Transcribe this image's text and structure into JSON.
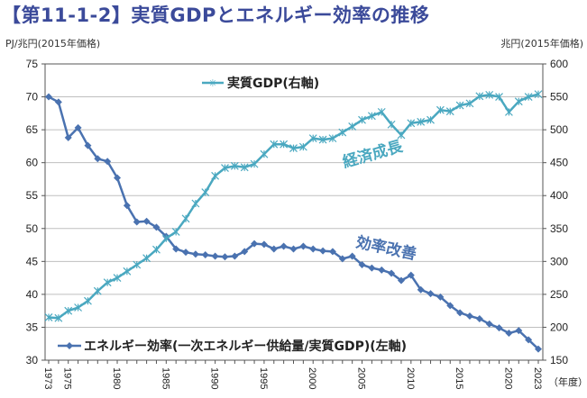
{
  "title": "【第11-1-2】実質GDPとエネルギー効率の推移",
  "chart_data": {
    "type": "line",
    "title": "【第11-1-2】実質GDPとエネルギー効率の推移",
    "xlabel": "（年度）",
    "ylabel_left": "PJ/兆円(2015年価格)",
    "ylabel_right": "兆円(2015年価格)",
    "ylim_left": [
      30,
      75
    ],
    "ylim_right": [
      150,
      600
    ],
    "yticks_left": [
      "30",
      "35",
      "40",
      "45",
      "50",
      "55",
      "60",
      "65",
      "70",
      "75"
    ],
    "yticks_right": [
      "150",
      "200",
      "250",
      "300",
      "350",
      "400",
      "450",
      "500",
      "550",
      "600"
    ],
    "xticks": [
      "1973",
      "1975",
      "1980",
      "1985",
      "1990",
      "1995",
      "2000",
      "2005",
      "2010",
      "2015",
      "2020",
      "2023"
    ],
    "grid": true,
    "x": [
      1973,
      1974,
      1975,
      1976,
      1977,
      1978,
      1979,
      1980,
      1981,
      1982,
      1983,
      1984,
      1985,
      1986,
      1987,
      1988,
      1989,
      1990,
      1991,
      1992,
      1993,
      1994,
      1995,
      1996,
      1997,
      1998,
      1999,
      2000,
      2001,
      2002,
      2003,
      2004,
      2005,
      2006,
      2007,
      2008,
      2009,
      2010,
      2011,
      2012,
      2013,
      2014,
      2015,
      2016,
      2017,
      2018,
      2019,
      2020,
      2021,
      2022,
      2023
    ],
    "series": [
      {
        "name": "エネルギー効率(一次エネルギー供給量/実質GDP)(左軸)",
        "axis": "left",
        "color": "#4a72b0",
        "marker": "diamond",
        "values": [
          70.0,
          69.2,
          63.8,
          65.3,
          62.6,
          60.6,
          60.2,
          57.7,
          53.5,
          51.0,
          51.1,
          50.2,
          48.8,
          46.9,
          46.4,
          46.1,
          46.0,
          45.8,
          45.7,
          45.8,
          46.5,
          47.7,
          47.6,
          46.9,
          47.3,
          46.9,
          47.3,
          46.9,
          46.6,
          46.5,
          45.4,
          45.8,
          44.5,
          44.0,
          43.7,
          43.2,
          42.1,
          42.9,
          40.7,
          40.1,
          39.6,
          38.3,
          37.2,
          36.7,
          36.3,
          35.5,
          34.9,
          34.1,
          34.5,
          33.1,
          31.7
        ]
      },
      {
        "name": "実質GDP(右軸)",
        "axis": "right",
        "color": "#4aa8c0",
        "marker": "star",
        "values": [
          215,
          214,
          225,
          230,
          240,
          255,
          268,
          275,
          285,
          295,
          305,
          318,
          335,
          345,
          365,
          388,
          405,
          430,
          442,
          445,
          443,
          448,
          463,
          478,
          478,
          472,
          474,
          487,
          485,
          487,
          496,
          505,
          515,
          521,
          527,
          508,
          492,
          510,
          512,
          515,
          530,
          528,
          537,
          540,
          551,
          553,
          550,
          527,
          543,
          550,
          554
        ]
      }
    ],
    "legend": [
      {
        "label": "実質GDP(右軸)",
        "placement": "top-center"
      },
      {
        "label": "エネルギー効率(一次エネルギー供給量/実質GDP)(左軸)",
        "placement": "bottom-left"
      }
    ],
    "annotations": [
      {
        "text": "経済成長",
        "color": "#4aa8c0"
      },
      {
        "text": "効率改善",
        "color": "#4a72b0"
      }
    ]
  }
}
